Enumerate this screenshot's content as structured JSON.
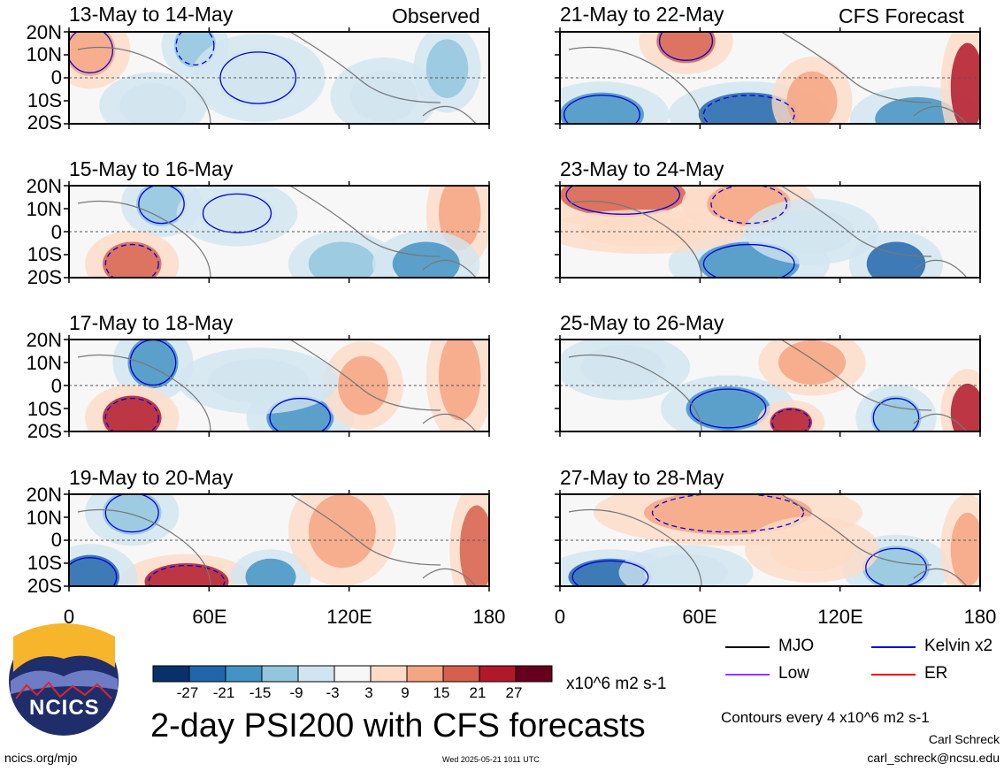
{
  "header": {
    "left_tag": "Observed",
    "right_tag": "CFS Forecast"
  },
  "panels": [
    {
      "title": "13-May to 14-May",
      "column": "observed",
      "row": 0
    },
    {
      "title": "15-May to 16-May",
      "column": "observed",
      "row": 1
    },
    {
      "title": "17-May to 18-May",
      "column": "observed",
      "row": 2
    },
    {
      "title": "19-May to 20-May",
      "column": "observed",
      "row": 3
    },
    {
      "title": "21-May to 22-May",
      "column": "forecast",
      "row": 0
    },
    {
      "title": "23-May to 24-May",
      "column": "forecast",
      "row": 1
    },
    {
      "title": "25-May to 26-May",
      "column": "forecast",
      "row": 2
    },
    {
      "title": "27-May to 28-May",
      "column": "forecast",
      "row": 3
    }
  ],
  "axes": {
    "y_ticks": [
      "20N",
      "10N",
      "0",
      "10S",
      "20S"
    ],
    "x_ticks": [
      "0",
      "60E",
      "120E",
      "180"
    ]
  },
  "colorbar": {
    "labels": [
      "-27",
      "-21",
      "-15",
      "-9",
      "-3",
      "3",
      "9",
      "15",
      "21",
      "27"
    ],
    "colors": [
      "#08306b",
      "#2166ac",
      "#4393c3",
      "#92c5de",
      "#d1e5f0",
      "#f7f7f7",
      "#fddbc7",
      "#f4a582",
      "#d6604d",
      "#b2182b",
      "#67001f"
    ],
    "units": "x10^6 m2 s-1"
  },
  "legend": [
    {
      "label": "MJO",
      "color": "#000000"
    },
    {
      "label": "Kelvin x2",
      "color": "#0000dd"
    },
    {
      "label": "Low",
      "color": "#9933ff"
    },
    {
      "label": "ER",
      "color": "#ee0000"
    }
  ],
  "title": "2-day PSI200 with CFS forecasts",
  "contour_note": "Contours every 4 x10^6 m2 s-1",
  "author": "Carl Schreck",
  "email": "carl_schreck@ncsu.edu",
  "site": "ncics.org/mjo",
  "timestamp": "Wed 2025-05-21 1011 UTC",
  "logo_text": "NCICS",
  "chart_data": {
    "type": "heatmap",
    "title": "2-day PSI200 with CFS forecasts",
    "variable": "PSI200 anomaly",
    "units": "x10^6 m2 s-1",
    "color_levels": [
      -27,
      -21,
      -15,
      -9,
      -3,
      3,
      9,
      15,
      21,
      27
    ],
    "x_range": [
      "0",
      "180"
    ],
    "y_range": [
      "20S",
      "20N"
    ],
    "x_ticks": [
      "0",
      "60E",
      "120E",
      "180"
    ],
    "y_ticks": [
      "20N",
      "10N",
      "0",
      "10S",
      "20S"
    ],
    "contour_interval": 4,
    "contour_series": [
      "MJO",
      "Kelvin x2",
      "Low",
      "ER"
    ],
    "panels": [
      "13-May to 14-May",
      "15-May to 16-May",
      "17-May to 18-May",
      "19-May to 20-May",
      "21-May to 22-May",
      "23-May to 24-May",
      "25-May to 26-May",
      "27-May to 28-May"
    ]
  }
}
